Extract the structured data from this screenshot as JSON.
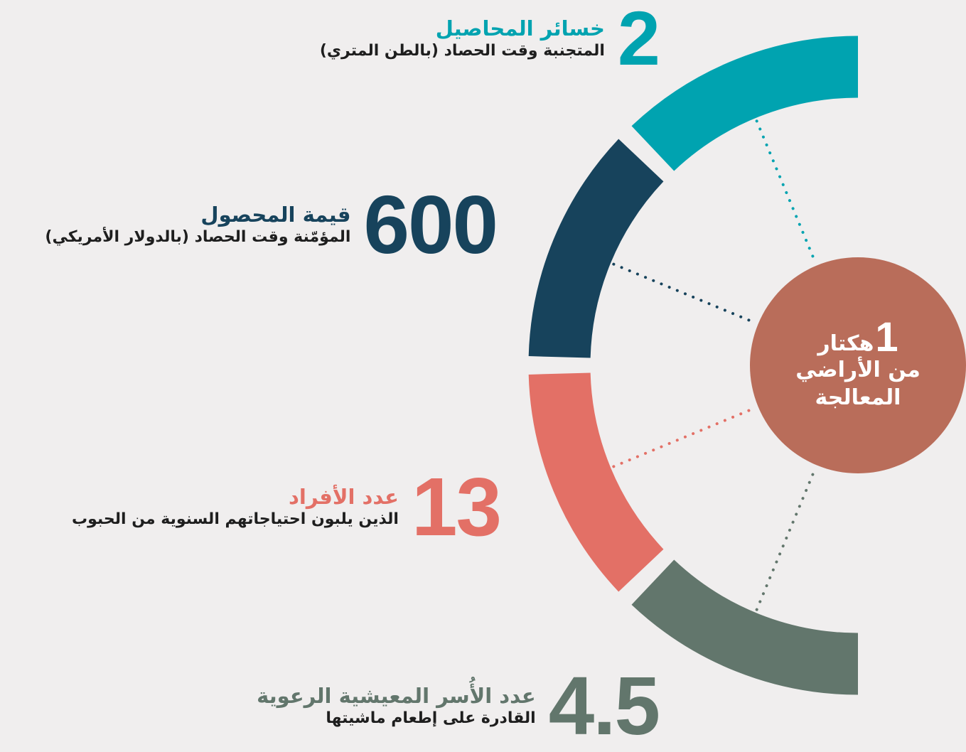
{
  "colors": {
    "teal": "#00a3b0",
    "navy": "#17435c",
    "coral": "#e37066",
    "gray": "#62766c",
    "center": "#b96d5a",
    "background": "#f0eeee"
  },
  "center": {
    "number": "1",
    "unit": "هكتار",
    "line2": "من الأراضي",
    "line3": "المعالجة"
  },
  "stats": [
    {
      "number": "2",
      "title": "خسائر المحاصيل",
      "subtitle": "المتجنبة وقت الحصاد (بالطن المتري)"
    },
    {
      "number": "600",
      "title": "قيمة المحصول",
      "subtitle": "المؤمّنة وقت الحصاد (بالدولار الأمريكي)"
    },
    {
      "number": "13",
      "title": "عدد الأفراد",
      "subtitle": "الذين يلبون احتياجاتهم السنوية من الحبوب"
    },
    {
      "number": "4.5",
      "title": "عدد الأُسر المعيشية الرعوية",
      "subtitle": "القادرة على إطعام ماشيتها"
    }
  ]
}
